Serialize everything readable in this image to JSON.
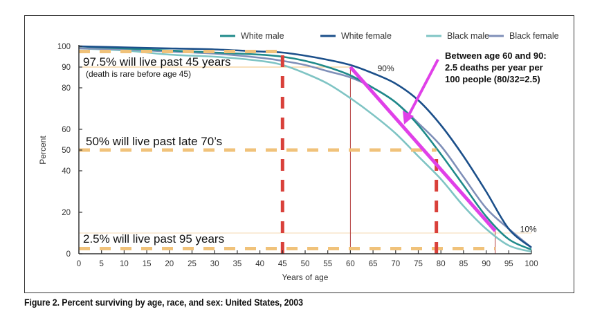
{
  "chart_data": {
    "type": "line",
    "title": "",
    "xlabel": "Years of age",
    "ylabel": "Percent",
    "xlim": [
      0,
      100
    ],
    "ylim": [
      0,
      100
    ],
    "x_ticks": [
      0,
      5,
      10,
      15,
      20,
      25,
      30,
      35,
      40,
      45,
      50,
      55,
      60,
      65,
      70,
      75,
      80,
      85,
      90,
      95,
      100
    ],
    "y_ticks": [
      0,
      20,
      40,
      50,
      60,
      80,
      90,
      100
    ],
    "grid": false,
    "legend_position": "top-right",
    "x": [
      0,
      10,
      20,
      30,
      40,
      45,
      50,
      55,
      60,
      65,
      70,
      75,
      80,
      85,
      90,
      95,
      100
    ],
    "series": [
      {
        "name": "White male",
        "color": "#1f8a8a",
        "values": [
          100,
          99,
          98,
          97,
          96,
          95,
          93,
          90,
          86,
          80,
          73,
          62,
          48,
          33,
          18,
          7,
          2
        ]
      },
      {
        "name": "White female",
        "color": "#1b4f8a",
        "values": [
          100,
          99.5,
          99,
          98.5,
          97.5,
          97,
          95.5,
          93.5,
          91,
          87,
          82,
          74,
          62,
          47,
          30,
          12,
          3
        ]
      },
      {
        "name": "Black male",
        "color": "#7fc4c4",
        "values": [
          99,
          98,
          96,
          95,
          93,
          91,
          87,
          82,
          75,
          67,
          58,
          47,
          36,
          23,
          12,
          4,
          1
        ]
      },
      {
        "name": "Black female",
        "color": "#7f8fb8",
        "values": [
          99,
          98.5,
          97.5,
          96.5,
          94.5,
          93,
          91,
          88,
          85,
          80,
          73,
          63,
          52,
          37,
          22,
          12,
          3
        ]
      }
    ],
    "annotations": {
      "h_lines": [
        {
          "y": 97.5,
          "x_to": 45,
          "label": "97.5% will live past 45 years",
          "sublabel": "(death is rare before age 45)",
          "color": "#f0c27a"
        },
        {
          "y": 50,
          "x_to": 79,
          "label": "50% will live past late 70’s",
          "color": "#f0c27a"
        },
        {
          "y": 2.5,
          "x_to": 92,
          "label": "2.5% will live past 95 years",
          "color": "#f0c27a"
        }
      ],
      "thin_h_lines": [
        {
          "y": 90,
          "x_to": 60,
          "color": "#f0c27a"
        },
        {
          "y": 10,
          "x_to": 100,
          "color": "#f5d9b0"
        }
      ],
      "v_dashed_lines": [
        {
          "x": 45,
          "y_to": 97.5,
          "color": "#d9403a"
        },
        {
          "x": 79,
          "y_to": 47,
          "color": "#d9403a"
        }
      ],
      "v_thin_lines": [
        {
          "x": 60,
          "y_to": 90,
          "color": "#b33a3a"
        },
        {
          "x": 92,
          "y_to": 11,
          "color": "#b33a3a"
        }
      ],
      "slope_line": {
        "x1": 60,
        "y1": 90,
        "x2": 92,
        "y2": 11,
        "color": "#e040e8"
      },
      "point_labels": [
        {
          "x": 66,
          "y": 88,
          "text": "90%"
        },
        {
          "x": 97.5,
          "y": 10.5,
          "text": "10%"
        }
      ],
      "callout": {
        "lines": [
          "Between age 60 and 90:",
          "2.5 deaths per year per",
          "100 people (80/32=2.5)"
        ],
        "arrow_color": "#e040e8"
      }
    }
  },
  "caption": "Figure 2. Percent surviving by age, race, and sex: United States, 2003"
}
